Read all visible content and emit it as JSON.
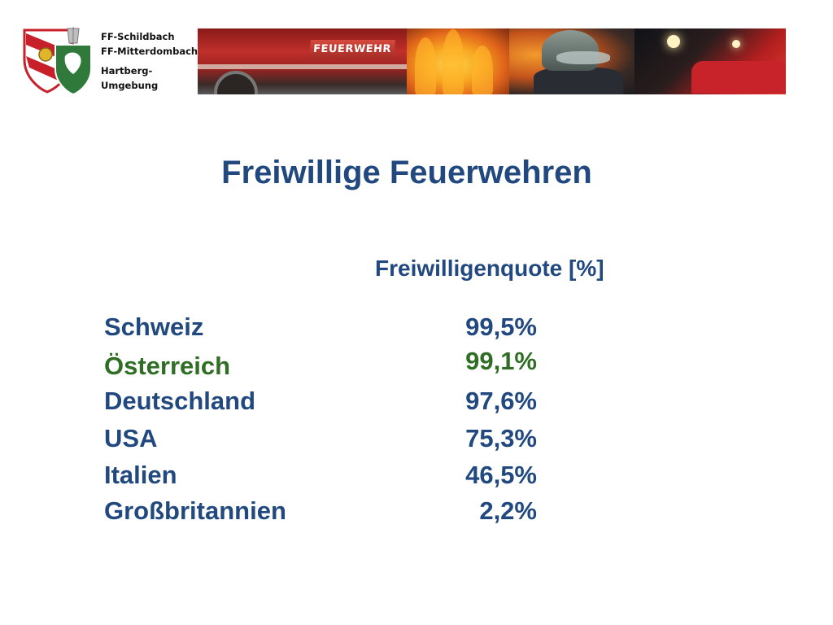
{
  "header": {
    "org_lines": [
      "FF-Schildbach",
      "FF-Mitterdombach",
      "Hartberg-",
      "Umgebung"
    ],
    "banner_sign": "FEUERWEHR"
  },
  "slide": {
    "title": "Freiwillige Feuerwehren",
    "column_header": "Freiwilligenquote [%]",
    "accent_color": "#21497f",
    "highlight_color": "#2f6e24",
    "rows": [
      {
        "country": "Schweiz",
        "value": "99,5%",
        "highlight": false
      },
      {
        "country": "Österreich",
        "value": "99,1%",
        "highlight": true
      },
      {
        "country": "Deutschland",
        "value": "97,6%",
        "highlight": false
      },
      {
        "country": "USA",
        "value": "75,3%",
        "highlight": false
      },
      {
        "country": "Italien",
        "value": "46,5%",
        "highlight": false
      },
      {
        "country": "Großbritannien",
        "value": "2,2%",
        "highlight": false
      }
    ]
  },
  "chart_data": {
    "type": "table",
    "columns": [
      "",
      "Freiwilligenquote [%]"
    ],
    "categories": [
      "Schweiz",
      "Österreich",
      "Deutschland",
      "USA",
      "Italien",
      "Großbritannien"
    ],
    "values": [
      99.5,
      99.1,
      97.6,
      75.3,
      46.5,
      2.2
    ]
  }
}
